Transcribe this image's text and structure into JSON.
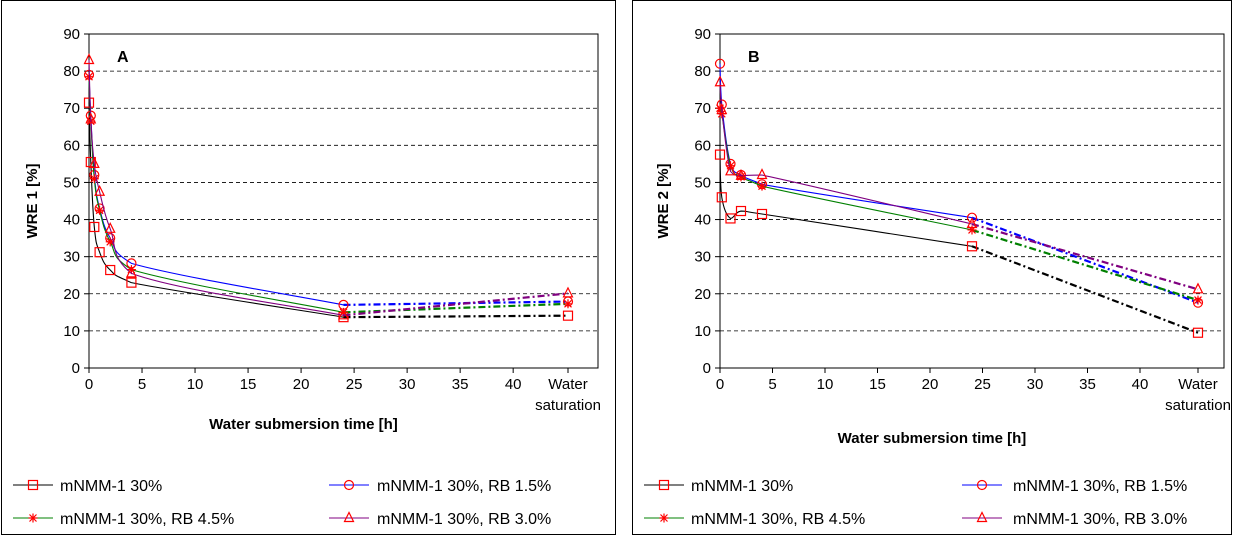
{
  "chart_data": [
    {
      "type": "line",
      "panel_label": "A",
      "ylabel": "WRE 1 [%]",
      "xlabel": "Water submersion time [h]",
      "xlim": [
        0,
        48
      ],
      "ylim": [
        0,
        90
      ],
      "y_ticks": [
        0,
        10,
        20,
        30,
        40,
        50,
        60,
        70,
        80,
        90
      ],
      "x_ticks": [
        0,
        5,
        10,
        15,
        20,
        25,
        30,
        35,
        40
      ],
      "x_extra_label": [
        "Water",
        "saturation"
      ],
      "grid": "horizontal dashed",
      "legend_placement": "bottom",
      "series": [
        {
          "name": "mNMM-1 30%",
          "color": "#000000",
          "marker_color": "#ff0000",
          "marker": "square",
          "x": [
            0,
            0.17,
            0.5,
            1,
            2,
            4,
            24
          ],
          "y": [
            71.5,
            55.5,
            38,
            31.2,
            26.4,
            23,
            13.7
          ],
          "saturation": 14.1
        },
        {
          "name": "mNMM-1 30%, RB 1.5%",
          "color": "#0000ff",
          "marker_color": "#ff0000",
          "marker": "circle",
          "x": [
            0,
            0.17,
            0.5,
            1,
            2,
            4,
            24
          ],
          "y": [
            79,
            68,
            52,
            43,
            35,
            28.2,
            17
          ],
          "saturation": 17.9
        },
        {
          "name": "mNMM-1 30%, RB 4.5%",
          "color": "#008000",
          "marker_color": "#ff0000",
          "marker": "star",
          "x": [
            0,
            0.17,
            0.5,
            1,
            2,
            4,
            24
          ],
          "y": [
            78.5,
            66.5,
            51,
            42.5,
            34,
            26.5,
            15
          ],
          "saturation": 17.3
        },
        {
          "name": "mNMM-1 30%, RB 3.0%",
          "color": "#800080",
          "marker_color": "#ff0000",
          "marker": "triangle",
          "x": [
            0,
            0.17,
            0.5,
            1,
            2,
            4,
            24
          ],
          "y": [
            83,
            67,
            55,
            47.5,
            37.5,
            25.5,
            14.2
          ],
          "saturation": 20.1
        }
      ]
    },
    {
      "type": "line",
      "panel_label": "B",
      "ylabel": "WRE 2 [%]",
      "xlabel": "Water submersion time [h]",
      "xlim": [
        0,
        48
      ],
      "ylim": [
        0,
        90
      ],
      "y_ticks": [
        0,
        10,
        20,
        30,
        40,
        50,
        60,
        70,
        80,
        90
      ],
      "x_ticks": [
        0,
        5,
        10,
        15,
        20,
        25,
        30,
        35,
        40
      ],
      "x_extra_label": [
        "Water",
        "saturation"
      ],
      "grid": "horizontal dashed",
      "legend_placement": "bottom",
      "series": [
        {
          "name": "mNMM-1 30%",
          "color": "#000000",
          "marker_color": "#ff0000",
          "marker": "square",
          "x": [
            0,
            0.17,
            1,
            2,
            4,
            24
          ],
          "y": [
            57.5,
            46,
            40.3,
            42.3,
            41.5,
            32.8
          ],
          "saturation": 9.5
        },
        {
          "name": "mNMM-1 30%, RB 1.5%",
          "color": "#0000ff",
          "marker_color": "#ff0000",
          "marker": "circle",
          "x": [
            0,
            0.17,
            1,
            2,
            4,
            24
          ],
          "y": [
            82,
            71,
            55,
            52,
            49.5,
            40.5
          ],
          "saturation": 17.6
        },
        {
          "name": "mNMM-1 30%, RB 4.5%",
          "color": "#008000",
          "marker_color": "#ff0000",
          "marker": "star",
          "x": [
            0,
            0.17,
            1,
            2,
            4,
            24
          ],
          "y": [
            70,
            68.5,
            54.5,
            51.5,
            49,
            37.2
          ],
          "saturation": 18.3
        },
        {
          "name": "mNMM-1 30%, RB 3.0%",
          "color": "#800080",
          "marker_color": "#ff0000",
          "marker": "triangle",
          "x": [
            0,
            0.17,
            1,
            2,
            4,
            24
          ],
          "y": [
            77,
            69.5,
            53,
            51.8,
            52,
            38.8
          ],
          "saturation": 21.2
        }
      ]
    }
  ]
}
